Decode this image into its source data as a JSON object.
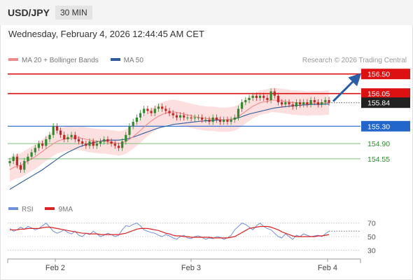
{
  "header": {
    "symbol": "USD/JPY",
    "timeframe": "30 MIN"
  },
  "timestamp": "Wednesday, February 4, 2026 12:44:45 AM CET",
  "credit": "Research © 2026 Trading Central",
  "legend": {
    "ma20_label": "MA 20 + Bollinger Bands",
    "ma50_label": "MA 50",
    "ma20_color": "#f08a8a",
    "ma50_color": "#2e5b9a"
  },
  "rsi_legend": {
    "rsi_label": "RSI",
    "ma_label": "9MA",
    "rsi_color": "#6f8fd8",
    "ma_color": "#dd2222"
  },
  "chart_data": [
    {
      "type": "candlestick",
      "title": "",
      "x_ticks": [
        "Feb 2",
        "Feb 3",
        "Feb 4"
      ],
      "ylim": [
        153.6,
        156.72
      ],
      "current_price": "155.84",
      "levels": [
        {
          "label": "156.50",
          "value": 156.5,
          "kind": "resistance",
          "style": "label-box",
          "color": "#dd1111"
        },
        {
          "label": "156.05",
          "value": 156.05,
          "kind": "resistance",
          "style": "label-box",
          "color": "#dd1111"
        },
        {
          "label": "155.30",
          "value": 155.3,
          "kind": "pivot",
          "style": "label-box",
          "color": "#2266cc"
        },
        {
          "label": "154.90",
          "value": 154.9,
          "kind": "support",
          "style": "text",
          "color": "#2d8a2d"
        },
        {
          "label": "154.55",
          "value": 154.55,
          "kind": "support",
          "style": "text",
          "color": "#2d8a2d"
        }
      ],
      "arrow": {
        "direction": "up",
        "target": 156.5,
        "color": "#2b5ea8"
      },
      "closes": [
        154.5,
        154.6,
        154.4,
        154.3,
        154.5,
        154.6,
        154.7,
        154.8,
        154.9,
        154.85,
        155.0,
        155.1,
        155.3,
        155.2,
        155.1,
        155.0,
        155.05,
        155.1,
        155.0,
        154.95,
        154.9,
        154.85,
        154.95,
        154.85,
        154.9,
        154.95,
        155.0,
        154.95,
        154.9,
        154.85,
        154.8,
        154.95,
        155.1,
        155.3,
        155.4,
        155.5,
        155.6,
        155.7,
        155.65,
        155.6,
        155.7,
        155.75,
        155.7,
        155.65,
        155.6,
        155.55,
        155.5,
        155.55,
        155.5,
        155.5,
        155.48,
        155.5,
        155.5,
        155.45,
        155.45,
        155.4,
        155.5,
        155.45,
        155.4,
        155.45,
        155.4,
        155.45,
        155.5,
        155.7,
        155.85,
        155.9,
        155.95,
        156.0,
        155.95,
        156.0,
        155.95,
        155.9,
        156.1,
        156.0,
        155.85,
        155.8,
        155.85,
        155.8,
        155.75,
        155.85,
        155.8,
        155.85,
        155.8,
        155.9,
        155.85,
        155.8,
        155.85,
        155.9,
        155.84
      ],
      "ma20": [
        154.3,
        154.35,
        154.38,
        154.4,
        154.45,
        154.5,
        154.55,
        154.6,
        154.66,
        154.72,
        154.78,
        154.84,
        154.9,
        154.95,
        154.98,
        155.0,
        155.02,
        155.03,
        155.03,
        155.03,
        155.02,
        155.0,
        154.98,
        154.97,
        154.96,
        154.95,
        154.95,
        154.94,
        154.93,
        154.92,
        154.9,
        154.92,
        154.95,
        155.0,
        155.06,
        155.13,
        155.2,
        155.28,
        155.35,
        155.42,
        155.48,
        155.53,
        155.57,
        155.6,
        155.62,
        155.63,
        155.62,
        155.6,
        155.58,
        155.56,
        155.54,
        155.52,
        155.5,
        155.49,
        155.48,
        155.47,
        155.47,
        155.46,
        155.45,
        155.45,
        155.45,
        155.46,
        155.48,
        155.52,
        155.58,
        155.64,
        155.7,
        155.76,
        155.8,
        155.84,
        155.86,
        155.87,
        155.9,
        155.9,
        155.89,
        155.88,
        155.87,
        155.86,
        155.84,
        155.84,
        155.83,
        155.83,
        155.82,
        155.83,
        155.83,
        155.83,
        155.83,
        155.84,
        155.84
      ],
      "ma50": [
        153.85,
        153.9,
        153.95,
        154.0,
        154.05,
        154.1,
        154.15,
        154.2,
        154.25,
        154.3,
        154.36,
        154.42,
        154.48,
        154.54,
        154.6,
        154.65,
        154.7,
        154.74,
        154.78,
        154.82,
        154.85,
        154.88,
        154.9,
        154.92,
        154.94,
        154.96,
        154.97,
        154.98,
        154.98,
        154.98,
        154.98,
        154.99,
        155.0,
        155.02,
        155.05,
        155.08,
        155.11,
        155.14,
        155.17,
        155.2,
        155.23,
        155.26,
        155.28,
        155.3,
        155.32,
        155.34,
        155.35,
        155.36,
        155.37,
        155.38,
        155.39,
        155.4,
        155.41,
        155.42,
        155.42,
        155.43,
        155.43,
        155.44,
        155.44,
        155.45,
        155.45,
        155.46,
        155.47,
        155.49,
        155.52,
        155.55,
        155.58,
        155.6,
        155.62,
        155.64,
        155.66,
        155.68,
        155.7,
        155.72,
        155.73,
        155.74,
        155.75,
        155.76,
        155.77,
        155.78,
        155.78,
        155.79,
        155.79,
        155.8,
        155.8,
        155.8,
        155.8,
        155.81,
        155.81
      ],
      "bollinger_width": 0.28
    },
    {
      "type": "line",
      "title": "RSI",
      "y_ticks": [
        "70",
        "50",
        "30"
      ],
      "ylim": [
        20,
        80
      ],
      "series": [
        {
          "name": "RSI",
          "values": [
            62,
            58,
            60,
            64,
            61,
            65,
            63,
            60,
            62,
            66,
            70,
            64,
            58,
            55,
            57,
            60,
            56,
            54,
            58,
            52,
            50,
            55,
            53,
            58,
            54,
            50,
            52,
            55,
            53,
            50,
            52,
            60,
            66,
            65,
            68,
            70,
            66,
            60,
            58,
            56,
            55,
            52,
            50,
            53,
            51,
            48,
            46,
            50,
            52,
            48,
            47,
            50,
            51,
            49,
            46,
            48,
            47,
            50,
            49,
            46,
            48,
            52,
            60,
            65,
            70,
            68,
            64,
            60,
            66,
            70,
            65,
            62,
            60,
            55,
            50,
            48,
            54,
            50,
            46,
            52,
            50,
            54,
            52,
            50,
            51,
            52,
            50,
            54,
            58
          ]
        },
        {
          "name": "9MA",
          "values": [
            60,
            60,
            60,
            61,
            61,
            62,
            62,
            62,
            62,
            63,
            64,
            64,
            63,
            62,
            61,
            60,
            59,
            58,
            57,
            56,
            55,
            55,
            54,
            54,
            54,
            53,
            53,
            53,
            53,
            53,
            53,
            54,
            55,
            57,
            59,
            61,
            62,
            62,
            62,
            61,
            60,
            59,
            57,
            55,
            54,
            52,
            51,
            51,
            50,
            50,
            49,
            49,
            49,
            49,
            49,
            49,
            48,
            48,
            48,
            48,
            48,
            49,
            50,
            53,
            56,
            59,
            62,
            63,
            64,
            65,
            65,
            65,
            64,
            62,
            60,
            57,
            55,
            53,
            51,
            50,
            50,
            50,
            50,
            50,
            50,
            51,
            51,
            52,
            53
          ]
        }
      ]
    }
  ]
}
